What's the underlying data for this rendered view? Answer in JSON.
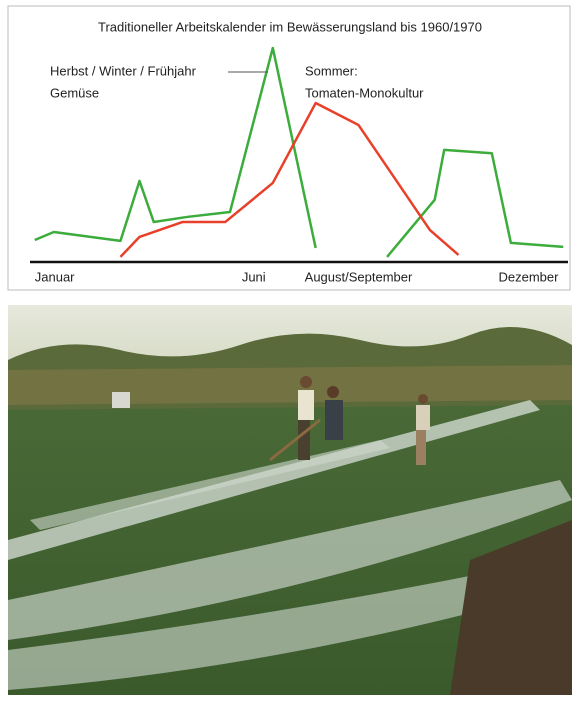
{
  "chart_data": {
    "type": "line",
    "title": "Traditioneller Arbeitskalender im Bewässerungsland bis 1960/1970",
    "xlim": [
      0.9,
      12.2
    ],
    "xticks": [
      {
        "value": 1,
        "label": "Januar"
      },
      {
        "value": 5.6,
        "label": "Juni"
      },
      {
        "value": 7.8,
        "label": "August/September"
      },
      {
        "value": 12,
        "label": "Dezember"
      }
    ],
    "ylim": [
      0,
      100
    ],
    "series": [
      {
        "name_lines": [
          "Herbst / Winter / Frühjahr",
          "Gemüse"
        ],
        "color": "#3cac3c",
        "x": [
          1,
          1.4,
          2.8,
          3.2,
          3.5,
          4.2,
          5.1,
          6.0,
          6.9,
          7.5,
          8.4,
          9.4,
          9.6,
          10.6,
          11,
          12.1
        ],
        "values": [
          9.9,
          13.5,
          9.5,
          36.5,
          18,
          20.3,
          22.5,
          96.4,
          6.3,
          null,
          2.3,
          28,
          50.5,
          49,
          8.6,
          6.8
        ]
      },
      {
        "name_lines": [
          "Sommer:",
          "Tomaten-Monokultur"
        ],
        "color": "#e8402a",
        "x": [
          2.8,
          3.2,
          4.1,
          5.0,
          6.0,
          6.9,
          7.8,
          9.3,
          9.9
        ],
        "values": [
          2.3,
          11.3,
          18,
          18,
          35.6,
          71.6,
          61.7,
          14.4,
          3.2
        ]
      }
    ]
  }
}
